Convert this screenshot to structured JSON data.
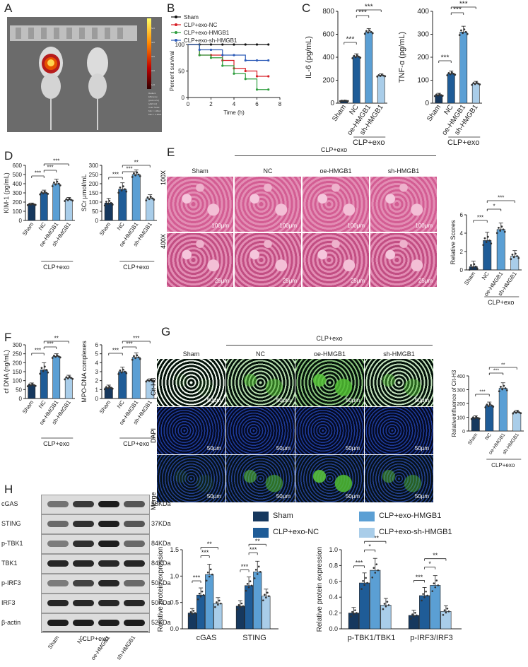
{
  "panels": {
    "A": "A",
    "B": "B",
    "C": "C",
    "D": "D",
    "E": "E",
    "F": "F",
    "G": "G",
    "H": "H"
  },
  "panelA": {
    "colorbar_labels": [
      "5e5",
      "4e5",
      "3e5",
      "2e5",
      "1e5"
    ],
    "caption_lines": [
      "Radiant Efficiency",
      "[p/s/cm²/sr]",
      "[µW/cm²]",
      "Color Scale",
      "Min = 1.38e4",
      "Max = 3.38e5"
    ]
  },
  "colors": {
    "sham": "#16385e",
    "nc": "#1f5c97",
    "oe": "#5b9fd4",
    "sh": "#a9cde9",
    "accent": "#f2d44a"
  },
  "groups": {
    "labels": [
      "Sham",
      "NC",
      "oe-HMGB1",
      "sh-HMGB1"
    ],
    "bracket": "CLP+exo"
  },
  "panelE": {
    "top_label": "CLP+exo",
    "columns": [
      "Sham",
      "NC",
      "oe-HMGB1",
      "sh-HMGB1"
    ],
    "rows": [
      "100X",
      "400X"
    ],
    "scale_top": "100μm",
    "scale_bottom": "25μm"
  },
  "panelG": {
    "top_label": "CLP+exo",
    "columns": [
      "Sham",
      "NC",
      "oe-HMGB1",
      "sh-HMGB1"
    ],
    "rows": [
      "Cit-H3",
      "DAPI",
      "Merge"
    ],
    "scale": "50μm"
  },
  "panelH": {
    "blots": [
      {
        "name": "cGAS",
        "size": "58KDa"
      },
      {
        "name": "STING",
        "size": "37KDa"
      },
      {
        "name": "p-TBK1",
        "size": "84KDa"
      },
      {
        "name": "TBK1",
        "size": "84KDa"
      },
      {
        "name": "p-IRF3",
        "size": "50KDa"
      },
      {
        "name": "IRF3",
        "size": "50KDa"
      },
      {
        "name": "β-actin",
        "size": "52KDa"
      }
    ],
    "lanes": [
      "Sham",
      "NC",
      "oe-HMGB1",
      "sh-HMGB1"
    ],
    "bracket": "CLP+exo",
    "legend": [
      "Sham",
      "CLP+exo-NC",
      "CLP+exo-HMGB1",
      "CLP+exo-sh-HMGB1"
    ]
  },
  "chart_data": [
    {
      "id": "B",
      "type": "line",
      "xlabel": "Time (h)",
      "ylabel": "Percent survival",
      "xlim": [
        0,
        8
      ],
      "ylim": [
        0,
        100
      ],
      "xticks": [
        0,
        2,
        4,
        6,
        8
      ],
      "yticks": [
        0,
        50,
        100
      ],
      "series": [
        {
          "name": "Sham",
          "color": "#111111",
          "points": [
            [
              0,
              100
            ],
            [
              1,
              100
            ],
            [
              2,
              100
            ],
            [
              3,
              100
            ],
            [
              4,
              100
            ],
            [
              5,
              100
            ],
            [
              6,
              100
            ],
            [
              7,
              100
            ]
          ]
        },
        {
          "name": "CLP+exo-NC",
          "color": "#d81f26",
          "points": [
            [
              0,
              100
            ],
            [
              1,
              80
            ],
            [
              2,
              80
            ],
            [
              3,
              70
            ],
            [
              4,
              55
            ],
            [
              5,
              50
            ],
            [
              6,
              40
            ],
            [
              7,
              40
            ]
          ]
        },
        {
          "name": "CLP+exo-HMGB1",
          "color": "#2e9e3e",
          "points": [
            [
              0,
              100
            ],
            [
              1,
              80
            ],
            [
              2,
              75
            ],
            [
              3,
              60
            ],
            [
              4,
              45
            ],
            [
              5,
              35
            ],
            [
              6,
              15
            ],
            [
              7,
              15
            ]
          ]
        },
        {
          "name": "CLP+exo-sh-HMGB1",
          "color": "#2c5bb8",
          "points": [
            [
              0,
              100
            ],
            [
              1,
              90
            ],
            [
              2,
              90
            ],
            [
              3,
              80
            ],
            [
              4,
              80
            ],
            [
              5,
              70
            ],
            [
              6,
              70
            ],
            [
              7,
              70
            ]
          ]
        }
      ]
    },
    {
      "id": "C1",
      "type": "bar",
      "ylabel": "IL-6 (pg/mL)",
      "ylim": [
        0,
        800
      ],
      "yticks": [
        0,
        200,
        400,
        600,
        800
      ],
      "values": [
        20,
        405,
        620,
        240
      ],
      "errors": [
        5,
        25,
        30,
        15
      ],
      "sig": [
        "***",
        "***",
        "***"
      ]
    },
    {
      "id": "C2",
      "type": "bar",
      "ylabel": "TNF-α (pg/mL)",
      "ylim": [
        0,
        400
      ],
      "yticks": [
        0,
        100,
        200,
        300,
        400
      ],
      "values": [
        35,
        128,
        310,
        85
      ],
      "errors": [
        8,
        12,
        25,
        10
      ],
      "sig": [
        "***",
        "***",
        "***"
      ]
    },
    {
      "id": "D1",
      "type": "bar",
      "ylabel": "KIM-1 (pg/mL)",
      "ylim": [
        0,
        600
      ],
      "yticks": [
        0,
        100,
        200,
        300,
        400,
        500,
        600
      ],
      "values": [
        175,
        300,
        400,
        225
      ],
      "errors": [
        15,
        30,
        50,
        25
      ],
      "sig": [
        "***",
        "***",
        "***"
      ]
    },
    {
      "id": "D2",
      "type": "bar",
      "ylabel": "SCr μmol/mL",
      "ylim": [
        0,
        300
      ],
      "yticks": [
        0,
        50,
        100,
        150,
        200,
        250,
        300
      ],
      "values": [
        95,
        170,
        250,
        120
      ],
      "errors": [
        25,
        35,
        25,
        20
      ],
      "sig": [
        "***",
        "***",
        "**"
      ]
    },
    {
      "id": "E",
      "type": "bar",
      "ylabel": "Relative Scores",
      "ylim": [
        0,
        6
      ],
      "yticks": [
        0,
        2,
        4,
        6
      ],
      "values": [
        0.35,
        3.2,
        4.4,
        1.5
      ],
      "errors": [
        0.6,
        0.9,
        0.7,
        0.6
      ],
      "sig": [
        "***",
        "*",
        "***"
      ]
    },
    {
      "id": "F1",
      "type": "bar",
      "ylabel": "cf DNA (ng/mL)",
      "ylim": [
        0,
        300
      ],
      "yticks": [
        0,
        50,
        100,
        150,
        200,
        250,
        300
      ],
      "values": [
        75,
        160,
        235,
        115
      ],
      "errors": [
        12,
        40,
        15,
        15
      ],
      "sig": [
        "***",
        "***",
        "**"
      ]
    },
    {
      "id": "F2",
      "type": "bar",
      "ylabel": "MPO-DNA complexes",
      "ylim": [
        0,
        6
      ],
      "yticks": [
        0,
        1,
        2,
        3,
        4,
        5,
        6
      ],
      "values": [
        1.2,
        3.0,
        4.6,
        2.0
      ],
      "errors": [
        0.3,
        0.5,
        0.5,
        0.2
      ],
      "sig": [
        "***",
        "***",
        "***"
      ]
    },
    {
      "id": "G",
      "type": "bar",
      "ylabel": "Relativeinfluence of Cit-H3",
      "ylim": [
        0,
        400
      ],
      "yticks": [
        0,
        100,
        200,
        300,
        400
      ],
      "values": [
        95,
        185,
        310,
        135
      ],
      "errors": [
        15,
        25,
        40,
        15
      ],
      "sig": [
        "***",
        "***",
        "**"
      ]
    },
    {
      "id": "H1",
      "type": "bar",
      "ylabel": "Relative protein expression",
      "ylim": [
        0,
        1.5
      ],
      "yticks": [
        0.0,
        0.5,
        1.0,
        1.5
      ],
      "categories": [
        "cGAS",
        "STING"
      ],
      "series": [
        {
          "name": "Sham",
          "values": [
            0.3,
            0.43
          ]
        },
        {
          "name": "CLP+exo-NC",
          "values": [
            0.64,
            0.82
          ]
        },
        {
          "name": "CLP+exo-HMGB1",
          "values": [
            1.03,
            1.08
          ]
        },
        {
          "name": "CLP+exo-sh-HMGB1",
          "values": [
            0.48,
            0.62
          ]
        }
      ],
      "sig": [
        [
          "***",
          "***",
          "**"
        ],
        [
          "***",
          "***",
          "**"
        ]
      ]
    },
    {
      "id": "H2",
      "type": "bar",
      "ylabel": "Relative protein expression",
      "ylim": [
        0,
        1.0
      ],
      "yticks": [
        0.0,
        0.2,
        0.4,
        0.6,
        0.8,
        1.0
      ],
      "categories": [
        "p-TBK1/TBK1",
        "p-IRF3/IRF3"
      ],
      "series": [
        {
          "name": "Sham",
          "values": [
            0.2,
            0.17
          ]
        },
        {
          "name": "CLP+exo-NC",
          "values": [
            0.58,
            0.42
          ]
        },
        {
          "name": "CLP+exo-HMGB1",
          "values": [
            0.74,
            0.55
          ]
        },
        {
          "name": "CLP+exo-sh-HMGB1",
          "values": [
            0.3,
            0.22
          ]
        }
      ],
      "sig": [
        [
          "***",
          "*",
          "***"
        ],
        [
          "***",
          "*",
          "**"
        ]
      ]
    }
  ]
}
